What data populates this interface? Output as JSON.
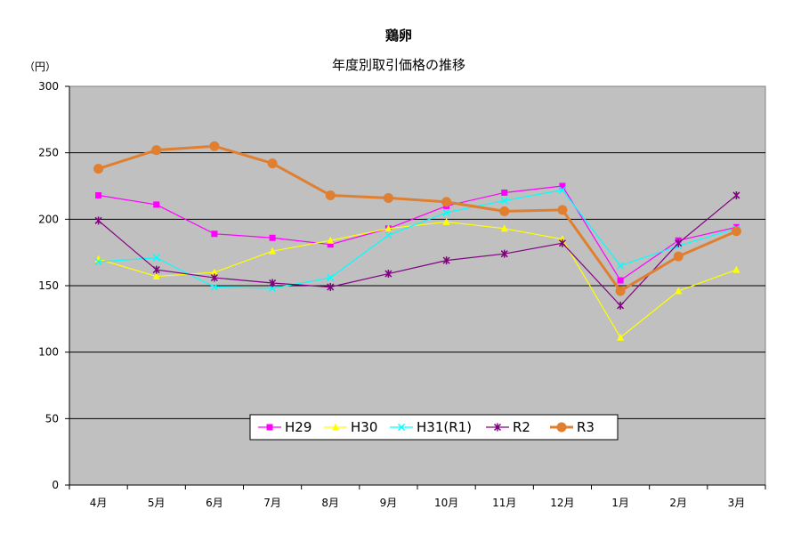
{
  "chart_data": {
    "type": "line",
    "title": "鶏卵",
    "subtitle": "年度別取引価格の推移",
    "ylabel": "（円）",
    "xlabel": "",
    "categories": [
      "4月",
      "5月",
      "6月",
      "7月",
      "8月",
      "9月",
      "10月",
      "11月",
      "12月",
      "1月",
      "2月",
      "3月"
    ],
    "ylim": [
      0,
      300
    ],
    "yticks": [
      0,
      50,
      100,
      150,
      200,
      250,
      300
    ],
    "grid": true,
    "legend_position": "bottom-center",
    "background_color": "#c0c0c0",
    "series": [
      {
        "name": "H29",
        "color": "#ff00ff",
        "marker": "square",
        "values": [
          218,
          211,
          189,
          186,
          181,
          193,
          210,
          220,
          225,
          154,
          184,
          194
        ]
      },
      {
        "name": "H30",
        "color": "#ffff00",
        "marker": "triangle",
        "values": [
          170,
          157,
          160,
          176,
          184,
          193,
          198,
          193,
          185,
          111,
          146,
          162
        ]
      },
      {
        "name": "H31(R1)",
        "color": "#00ffff",
        "marker": "x",
        "values": [
          168,
          171,
          149,
          148,
          156,
          188,
          205,
          214,
          222,
          165,
          180,
          193
        ]
      },
      {
        "name": "R2",
        "color": "#800080",
        "marker": "star",
        "values": [
          199,
          162,
          156,
          152,
          149,
          159,
          169,
          174,
          182,
          135,
          182,
          218
        ]
      },
      {
        "name": "R3",
        "color": "#e07f30",
        "marker": "circle",
        "values": [
          238,
          252,
          255,
          242,
          218,
          216,
          213,
          206,
          207,
          146,
          172,
          191
        ]
      }
    ]
  }
}
